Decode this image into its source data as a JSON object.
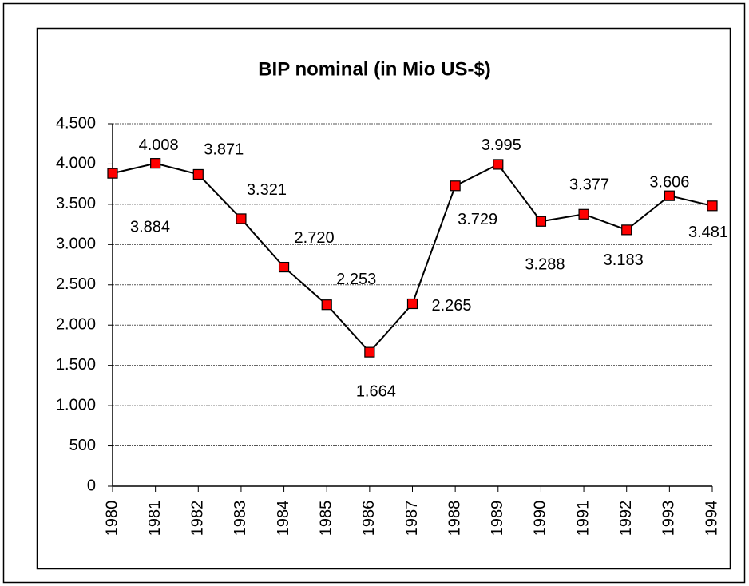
{
  "chart_data": {
    "type": "line",
    "title": "BIP nominal (in Mio US-$)",
    "categories": [
      "1980",
      "1981",
      "1982",
      "1983",
      "1984",
      "1985",
      "1986",
      "1987",
      "1988",
      "1989",
      "1990",
      "1991",
      "1992",
      "1993",
      "1994"
    ],
    "series": [
      {
        "color": "#ff0000",
        "values": [
          3884,
          4008,
          3871,
          3321,
          2720,
          2253,
          1664,
          2265,
          3729,
          3995,
          3288,
          3377,
          3183,
          3606,
          3481
        ],
        "value_labels": [
          "3.884",
          "4.008",
          "3.871",
          "3.321",
          "2.720",
          "2.253",
          "1.664",
          "2.265",
          "3.729",
          "3.995",
          "3.288",
          "3.377",
          "3.183",
          "3.606",
          "3.481"
        ]
      }
    ],
    "ylim": [
      0,
      4500
    ],
    "yticks": [
      0,
      500,
      {
        "value": 1000,
        "label": "1.000"
      },
      {
        "value": 1500,
        "label": "1.500"
      },
      {
        "value": 2000,
        "label": "2.000"
      },
      {
        "value": 2500,
        "label": "2.500"
      },
      {
        "value": 3000,
        "label": "3.000"
      },
      {
        "value": 3500,
        "label": "3.500"
      },
      {
        "value": 4000,
        "label": "4.000"
      },
      {
        "value": 4500,
        "label": "4.500"
      }
    ],
    "grid": true
  }
}
